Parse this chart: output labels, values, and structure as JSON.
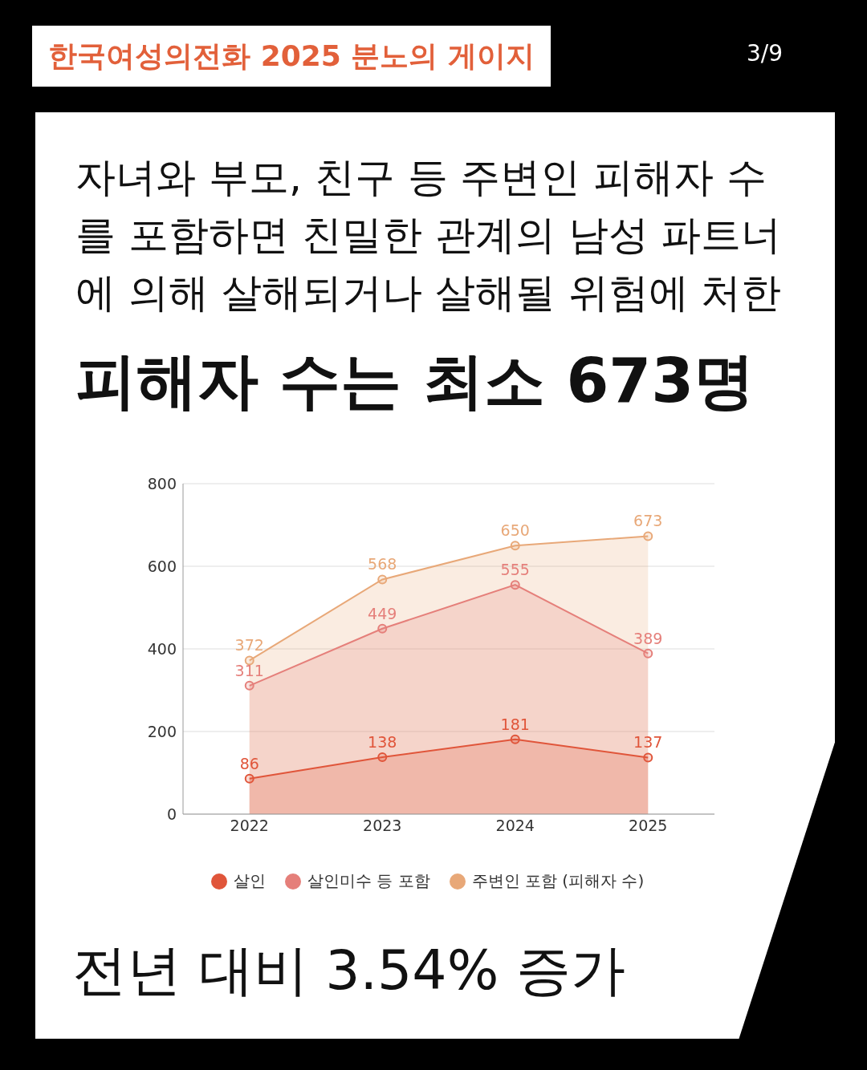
{
  "chart_data": {
    "type": "area",
    "title": "자녀와 부모, 친구 등 주변인 피해자 수를 포함하면 친밀한 관계의 남성 파트너에 의해 살해되거나 살해될 위험에 처한",
    "subtitle": "피해자 수는 최소 673명",
    "annotations": [
      "한국여성의전화 2025 분노의 게이지",
      "3/9",
      "전년 대비 3.54% 증가"
    ],
    "categories": [
      "2022",
      "2023",
      "2024",
      "2025"
    ],
    "series": [
      {
        "name": "살인",
        "color": "#e0553a",
        "values": [
          86,
          138,
          181,
          137
        ]
      },
      {
        "name": "살인미수 등 포함",
        "color": "#e57f7a",
        "values": [
          311,
          449,
          555,
          389
        ]
      },
      {
        "name": "주변인 포함 (피해자 수)",
        "color": "#e8a878",
        "values": [
          372,
          568,
          650,
          673
        ]
      }
    ],
    "ylim": [
      0,
      800
    ],
    "yticks": [
      0,
      200,
      400,
      600,
      800
    ],
    "grid": "y",
    "legend": "bottom",
    "marker": "circle",
    "data_labels": true
  }
}
